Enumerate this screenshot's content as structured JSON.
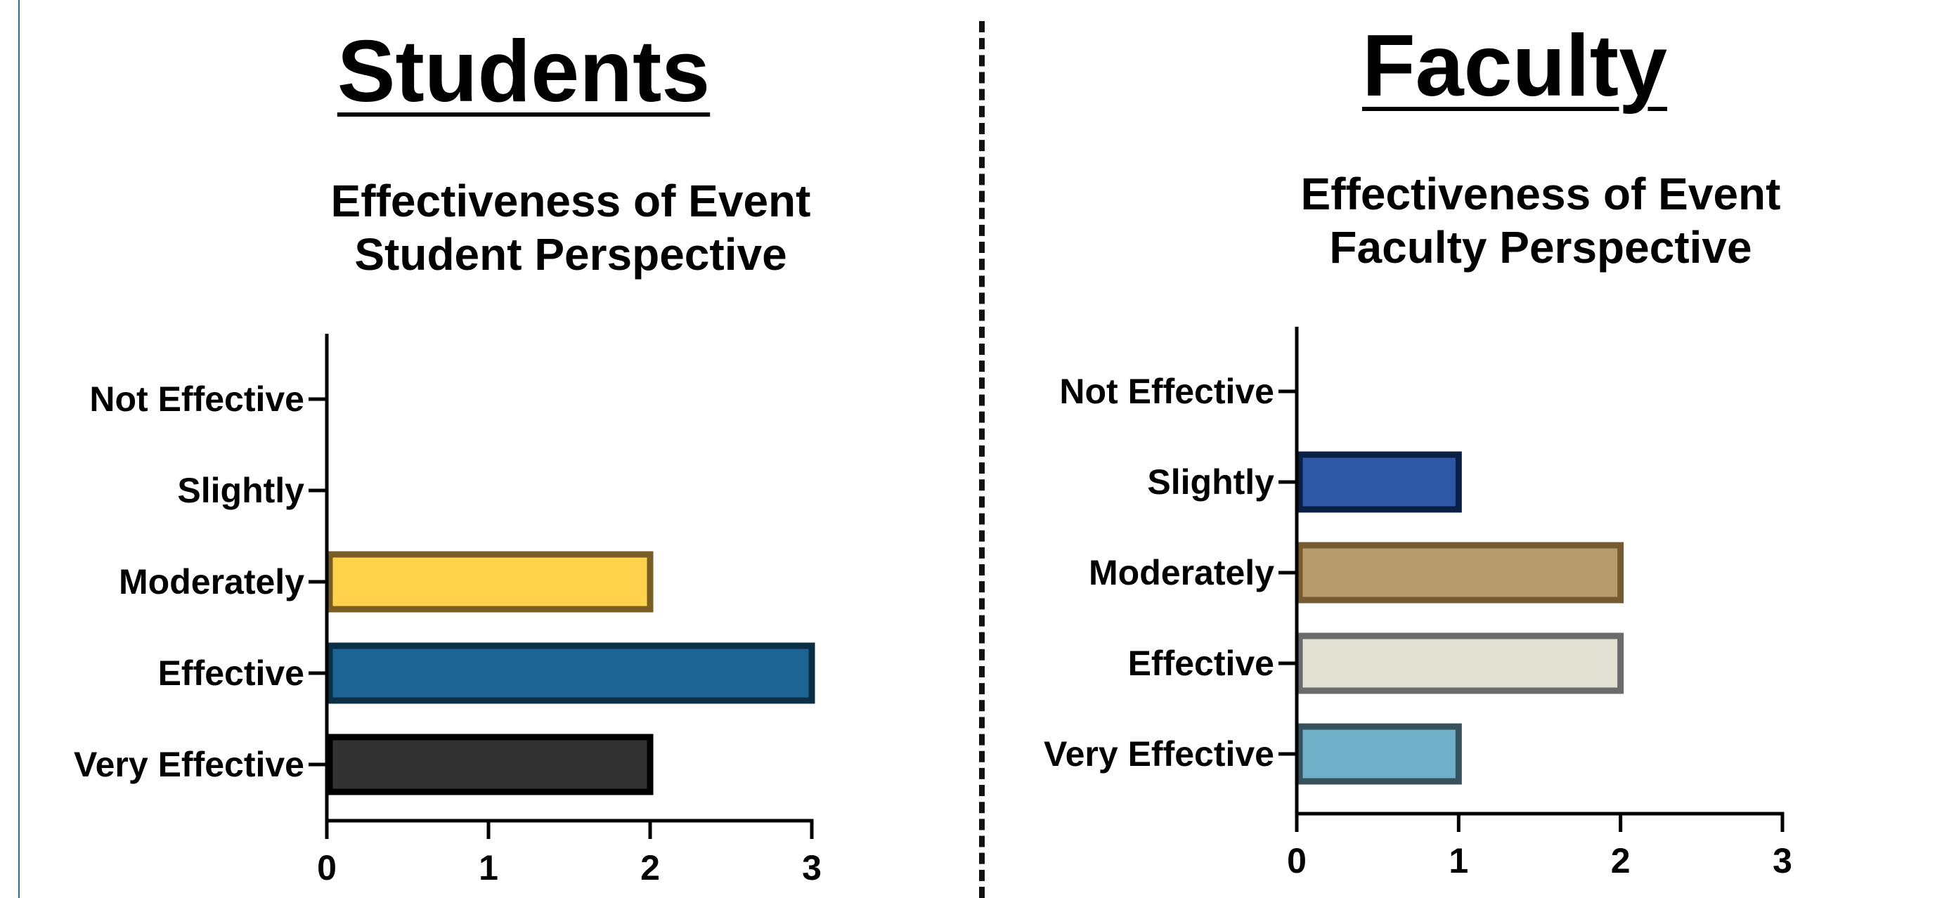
{
  "sections": {
    "students": {
      "heading": "Students"
    },
    "faculty": {
      "heading": "Faculty"
    }
  },
  "chart_data": [
    {
      "type": "bar",
      "orientation": "horizontal",
      "title": "Effectiveness of Event\nStudent Perspective",
      "title_lines": [
        "Effectiveness of Event",
        "Student Perspective"
      ],
      "categories": [
        "Not Effective",
        "Slightly",
        "Moderately",
        "Effective",
        "Very Effective"
      ],
      "values": [
        0,
        0,
        2,
        3,
        2
      ],
      "bar_colors": [
        "#FFD24C",
        "#FFD24C",
        "#FFD24C",
        "#1D6394",
        "#323232"
      ],
      "bar_edge_colors": [
        "#7A5C25",
        "#7A5C25",
        "#7A5C25",
        "#0B2F45",
        "#000000"
      ],
      "xlabel": "",
      "ylabel": "",
      "xlim": [
        0,
        3
      ],
      "xticks": [
        0,
        1,
        2,
        3
      ],
      "grid": false,
      "legend": "none"
    },
    {
      "type": "bar",
      "orientation": "horizontal",
      "title": "Effectiveness of Event\nFaculty Perspective",
      "title_lines": [
        "Effectiveness of Event",
        "Faculty Perspective"
      ],
      "categories": [
        "Not Effective",
        "Slightly",
        "Moderately",
        "Effective",
        "Very Effective"
      ],
      "values": [
        0,
        1,
        2,
        2,
        1
      ],
      "bar_colors": [
        "#2E57A6",
        "#2E57A6",
        "#B69B6E",
        "#E2DFD3",
        "#6FAFC8"
      ],
      "bar_edge_colors": [
        "#0B1F45",
        "#0B1F45",
        "#765A30",
        "#6B6B6B",
        "#37525C"
      ],
      "xlabel": "",
      "ylabel": "",
      "xlim": [
        0,
        3
      ],
      "xticks": [
        0,
        1,
        2,
        3
      ],
      "grid": false,
      "legend": "none"
    }
  ]
}
